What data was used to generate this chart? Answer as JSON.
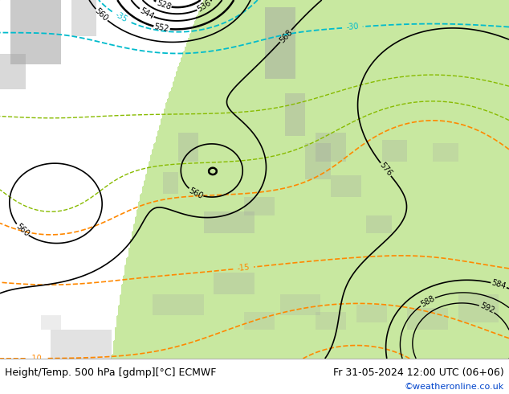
{
  "title_left": "Height/Temp. 500 hPa [gdmp][°C] ECMWF",
  "title_right": "Fr 31-05-2024 12:00 UTC (06+06)",
  "watermark": "©weatheronline.co.uk",
  "bg_ocean": "#d8d8d8",
  "bg_land": "#c8e8a0",
  "bg_gray_land": "#b8b8b8",
  "footer_bg": "#ffffff",
  "contour_color_black": "#000000",
  "contour_color_cyan": "#00bbcc",
  "contour_color_orange": "#ff8800",
  "contour_color_green": "#88bb00",
  "footer_fontsize": 9,
  "watermark_color": "#0044cc",
  "fig_width": 6.34,
  "fig_height": 4.9,
  "dpi": 100
}
